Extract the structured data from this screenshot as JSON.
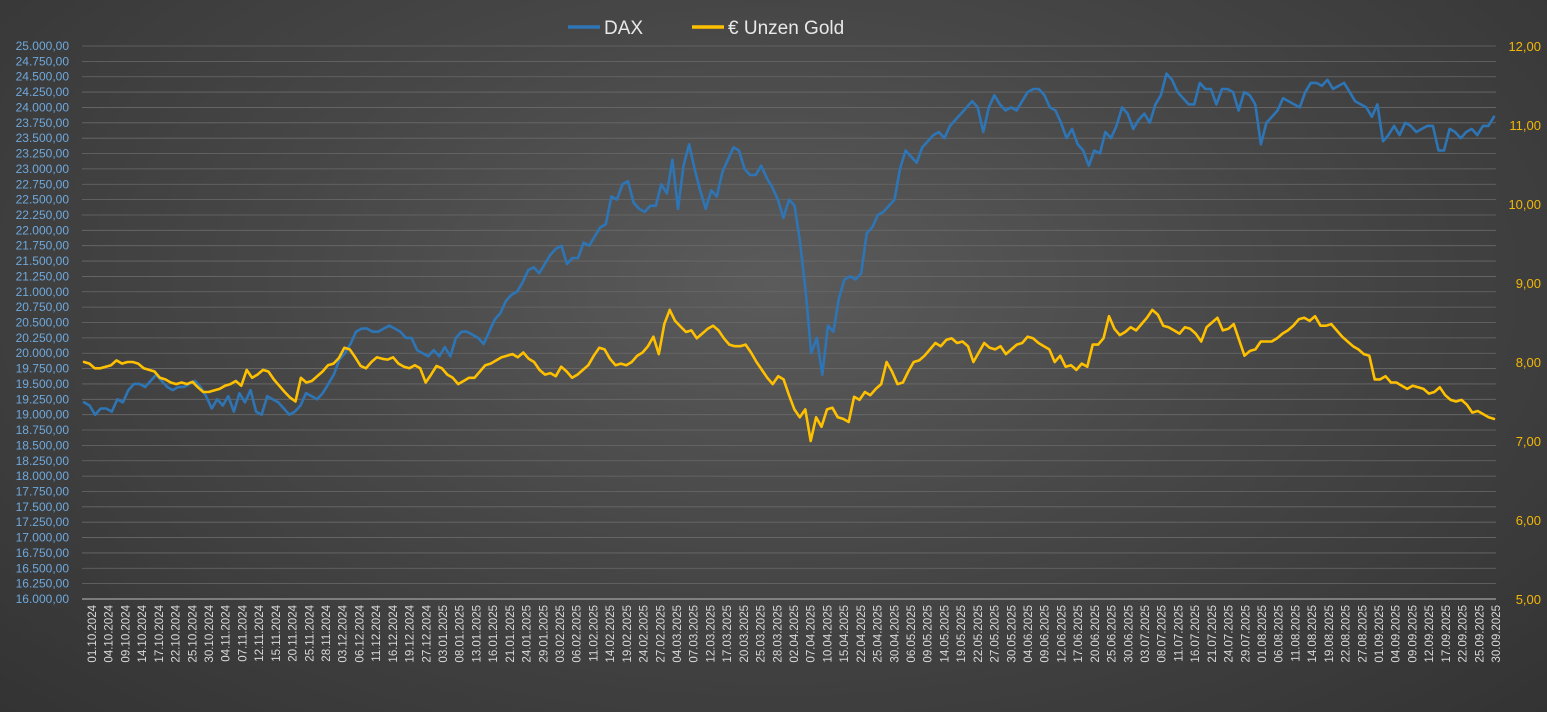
{
  "chart_data": {
    "type": "line",
    "title": "",
    "legend_position": "top-center",
    "grid": true,
    "colors": {
      "dax": "#2e75b6",
      "gold": "#ffc000",
      "grid": "#6a6a6a"
    },
    "y_left": {
      "ylim": [
        16000,
        25000
      ],
      "ticks": [
        "16.000,00",
        "16.250,00",
        "16.500,00",
        "16.750,00",
        "17.000,00",
        "17.250,00",
        "17.500,00",
        "17.750,00",
        "18.000,00",
        "18.250,00",
        "18.500,00",
        "18.750,00",
        "19.000,00",
        "19.250,00",
        "19.500,00",
        "19.750,00",
        "20.000,00",
        "20.250,00",
        "20.500,00",
        "20.750,00",
        "21.000,00",
        "21.250,00",
        "21.500,00",
        "21.750,00",
        "22.000,00",
        "22.250,00",
        "22.500,00",
        "22.750,00",
        "23.000,00",
        "23.250,00",
        "23.500,00",
        "23.750,00",
        "24.000,00",
        "24.250,00",
        "24.500,00",
        "24.750,00",
        "25.000,00"
      ]
    },
    "y_right": {
      "ylim": [
        5,
        12
      ],
      "ticks": [
        "5,00",
        "6,00",
        "7,00",
        "8,00",
        "9,00",
        "10,00",
        "11,00",
        "12,00"
      ]
    },
    "x_ticks": [
      "01.10.2024",
      "04.10.2024",
      "09.10.2024",
      "14.10.2024",
      "17.10.2024",
      "22.10.2024",
      "25.10.2024",
      "30.10.2024",
      "04.11.2024",
      "07.11.2024",
      "12.11.2024",
      "15.11.2024",
      "20.11.2024",
      "25.11.2024",
      "28.11.2024",
      "03.12.2024",
      "06.12.2024",
      "11.12.2024",
      "16.12.2024",
      "19.12.2024",
      "27.12.2024",
      "03.01.2025",
      "08.01.2025",
      "13.01.2025",
      "16.01.2025",
      "21.01.2025",
      "24.01.2025",
      "29.01.2025",
      "03.02.2025",
      "06.02.2025",
      "11.02.2025",
      "14.02.2025",
      "19.02.2025",
      "24.02.2025",
      "27.02.2025",
      "04.03.2025",
      "07.03.2025",
      "12.03.2025",
      "17.03.2025",
      "20.03.2025",
      "25.03.2025",
      "28.03.2025",
      "02.04.2025",
      "07.04.2025",
      "10.04.2025",
      "15.04.2025",
      "22.04.2025",
      "25.04.2025",
      "30.04.2025",
      "06.05.2025",
      "09.05.2025",
      "14.05.2025",
      "19.05.2025",
      "22.05.2025",
      "27.05.2025",
      "30.05.2025",
      "04.06.2025",
      "09.06.2025",
      "12.06.2025",
      "17.06.2025",
      "20.06.2025",
      "25.06.2025",
      "30.06.2025",
      "03.07.2025",
      "08.07.2025",
      "11.07.2025",
      "16.07.2025",
      "21.07.2025",
      "24.07.2025",
      "29.07.2025",
      "01.08.2025",
      "06.08.2025",
      "11.08.2025",
      "14.08.2025",
      "19.08.2025",
      "22.08.2025",
      "27.08.2025",
      "01.09.2025",
      "04.09.2025",
      "09.09.2025",
      "12.09.2025",
      "17.09.2025",
      "22.09.2025",
      "25.09.2025",
      "30.09.2025"
    ],
    "series": [
      {
        "name": "DAX",
        "axis": "left",
        "values": [
          19200,
          19150,
          19000,
          19100,
          19100,
          19050,
          19250,
          19200,
          19400,
          19500,
          19500,
          19450,
          19550,
          19650,
          19550,
          19450,
          19400,
          19450,
          19450,
          19500,
          19550,
          19450,
          19300,
          19100,
          19250,
          19150,
          19300,
          19050,
          19350,
          19200,
          19400,
          19050,
          19000,
          19300,
          19250,
          19200,
          19100,
          19000,
          19050,
          19150,
          19350,
          19300,
          19250,
          19350,
          19500,
          19650,
          19900,
          20000,
          20150,
          20350,
          20400,
          20400,
          20350,
          20350,
          20400,
          20450,
          20400,
          20350,
          20250,
          20250,
          20050,
          20000,
          19950,
          20050,
          19950,
          20100,
          19950,
          20250,
          20350,
          20350,
          20300,
          20250,
          20150,
          20350,
          20550,
          20650,
          20850,
          20950,
          21000,
          21150,
          21350,
          21400,
          21300,
          21450,
          21600,
          21700,
          21750,
          21450,
          21550,
          21550,
          21800,
          21750,
          21900,
          22050,
          22100,
          22550,
          22500,
          22750,
          22800,
          22450,
          22350,
          22300,
          22400,
          22400,
          22750,
          22600,
          23150,
          22350,
          23050,
          23400,
          23000,
          22650,
          22350,
          22650,
          22550,
          22950,
          23150,
          23350,
          23300,
          23000,
          22900,
          22900,
          23050,
          22850,
          22700,
          22500,
          22200,
          22500,
          22400,
          21800,
          21000,
          20000,
          20250,
          19650,
          20450,
          20350,
          20900,
          21200,
          21250,
          21200,
          21300,
          21950,
          22050,
          22250,
          22300,
          22400,
          22500,
          23000,
          23300,
          23200,
          23100,
          23350,
          23450,
          23550,
          23600,
          23500,
          23700,
          23800,
          23900,
          24000,
          24100,
          24000,
          23600,
          24000,
          24200,
          24050,
          23950,
          24000,
          23950,
          24100,
          24250,
          24300,
          24300,
          24200,
          24000,
          23950,
          23750,
          23500,
          23650,
          23400,
          23300,
          23050,
          23300,
          23250,
          23600,
          23500,
          23700,
          24000,
          23900,
          23650,
          23800,
          23900,
          23750,
          24050,
          24200,
          24550,
          24450,
          24250,
          24150,
          24050,
          24050,
          24400,
          24300,
          24300,
          24050,
          24300,
          24300,
          24250,
          23950,
          24250,
          24200,
          24050,
          23400,
          23750,
          23850,
          23950,
          24150,
          24100,
          24050,
          24000,
          24250,
          24400,
          24400,
          24350,
          24450,
          24300,
          24350,
          24400,
          24250,
          24100,
          24050,
          24000,
          23850,
          24050,
          23450,
          23550,
          23700,
          23550,
          23750,
          23700,
          23600,
          23650,
          23700,
          23700,
          23300,
          23300,
          23650,
          23600,
          23500,
          23600,
          23650,
          23550,
          23700,
          23700,
          23850
        ]
      },
      {
        "name": "€ Unzen Gold",
        "axis": "right",
        "values": [
          8.0,
          7.98,
          7.92,
          7.92,
          7.94,
          7.96,
          8.02,
          7.98,
          8.0,
          8.0,
          7.98,
          7.92,
          7.9,
          7.88,
          7.8,
          7.78,
          7.74,
          7.72,
          7.74,
          7.72,
          7.75,
          7.68,
          7.62,
          7.62,
          7.64,
          7.66,
          7.7,
          7.72,
          7.76,
          7.7,
          7.9,
          7.8,
          7.84,
          7.9,
          7.88,
          7.78,
          7.7,
          7.62,
          7.55,
          7.5,
          7.8,
          7.74,
          7.76,
          7.82,
          7.88,
          7.96,
          7.98,
          8.05,
          8.18,
          8.16,
          8.06,
          7.95,
          7.92,
          8.0,
          8.06,
          8.04,
          8.03,
          8.06,
          7.98,
          7.94,
          7.92,
          7.96,
          7.92,
          7.74,
          7.84,
          7.95,
          7.92,
          7.84,
          7.8,
          7.72,
          7.76,
          7.8,
          7.8,
          7.88,
          7.96,
          7.98,
          8.02,
          8.06,
          8.08,
          8.1,
          8.06,
          8.12,
          8.04,
          8.0,
          7.9,
          7.84,
          7.86,
          7.82,
          7.94,
          7.88,
          7.8,
          7.84,
          7.9,
          7.96,
          8.08,
          8.18,
          8.16,
          8.04,
          7.96,
          7.98,
          7.96,
          8.0,
          8.08,
          8.12,
          8.2,
          8.32,
          8.1,
          8.48,
          8.66,
          8.52,
          8.45,
          8.38,
          8.4,
          8.3,
          8.36,
          8.42,
          8.46,
          8.4,
          8.3,
          8.22,
          8.2,
          8.2,
          8.22,
          8.12,
          8.0,
          7.9,
          7.8,
          7.72,
          7.82,
          7.78,
          7.58,
          7.4,
          7.3,
          7.4,
          7.0,
          7.3,
          7.18,
          7.4,
          7.42,
          7.3,
          7.28,
          7.24,
          7.56,
          7.52,
          7.62,
          7.58,
          7.66,
          7.72,
          8.0,
          7.88,
          7.72,
          7.74,
          7.88,
          8.0,
          8.02,
          8.08,
          8.16,
          8.24,
          8.2,
          8.28,
          8.3,
          8.24,
          8.26,
          8.2,
          8.0,
          8.12,
          8.24,
          8.18,
          8.16,
          8.2,
          8.1,
          8.16,
          8.22,
          8.24,
          8.32,
          8.3,
          8.24,
          8.2,
          8.16,
          8.0,
          8.08,
          7.94,
          7.96,
          7.9,
          7.98,
          7.94,
          8.22,
          8.22,
          8.3,
          8.58,
          8.42,
          8.34,
          8.38,
          8.44,
          8.4,
          8.48,
          8.56,
          8.66,
          8.6,
          8.46,
          8.44,
          8.4,
          8.36,
          8.44,
          8.42,
          8.36,
          8.26,
          8.44,
          8.5,
          8.56,
          8.4,
          8.42,
          8.48,
          8.28,
          8.08,
          8.14,
          8.16,
          8.26,
          8.26,
          8.26,
          8.3,
          8.36,
          8.4,
          8.46,
          8.54,
          8.56,
          8.52,
          8.58,
          8.46,
          8.46,
          8.48,
          8.4,
          8.32,
          8.26,
          8.2,
          8.16,
          8.1,
          8.08,
          7.78,
          7.78,
          7.82,
          7.74,
          7.74,
          7.7,
          7.66,
          7.7,
          7.68,
          7.66,
          7.6,
          7.62,
          7.68,
          7.58,
          7.52,
          7.5,
          7.52,
          7.46,
          7.36,
          7.38,
          7.34,
          7.3,
          7.28
        ]
      }
    ]
  }
}
